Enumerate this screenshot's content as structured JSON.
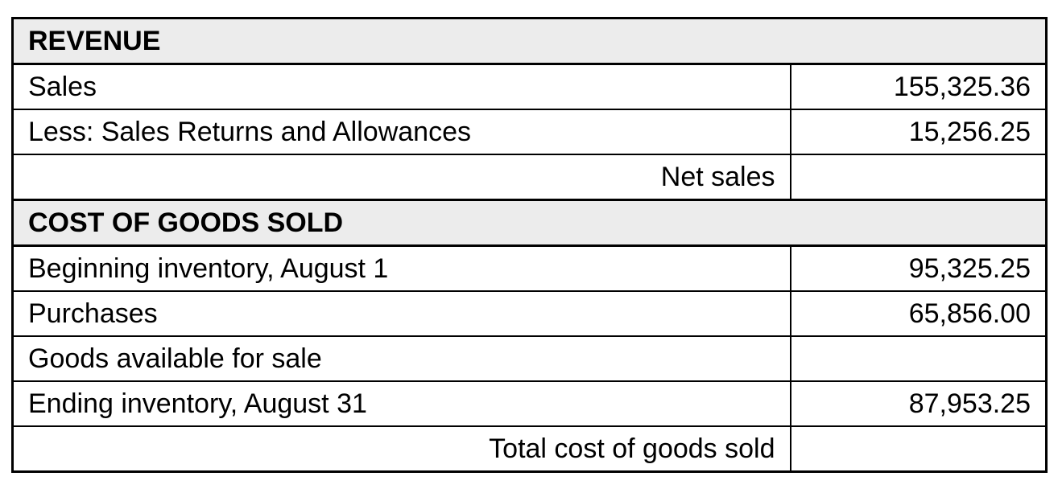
{
  "revenue": {
    "header": "REVENUE",
    "rows": [
      {
        "label": "Sales",
        "amount": "155,325.36"
      },
      {
        "label": "Less: Sales Returns and Allowances",
        "amount": "15,256.25"
      }
    ],
    "subtotal": {
      "label": "Net sales",
      "amount": ""
    }
  },
  "cogs": {
    "header": "COST OF GOODS SOLD",
    "rows": [
      {
        "label": "Beginning inventory, August 1",
        "amount": "95,325.25"
      },
      {
        "label": "Purchases",
        "amount": "65,856.00"
      },
      {
        "label": "Goods available for sale",
        "amount": ""
      },
      {
        "label": "Ending inventory, August 31",
        "amount": "87,953.25"
      }
    ],
    "subtotal": {
      "label": "Total cost of goods sold",
      "amount": ""
    }
  }
}
